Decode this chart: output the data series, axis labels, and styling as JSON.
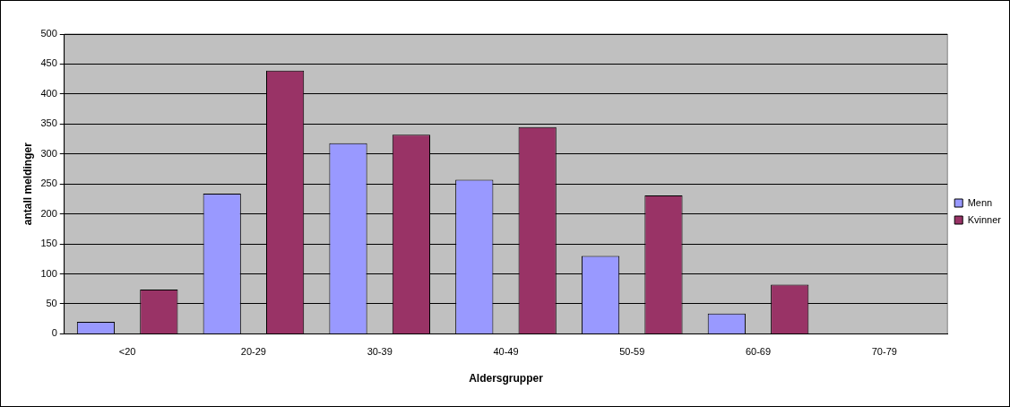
{
  "chart_data": {
    "type": "bar",
    "xlabel": "Aldersgrupper",
    "ylabel": "antall meldinger",
    "categories": [
      "<20",
      "20-29",
      "30-39",
      "40-49",
      "50-59",
      "60-69",
      "70-79"
    ],
    "series": [
      {
        "name": "Menn",
        "color": "#9999ff",
        "values": [
          20,
          234,
          318,
          257,
          130,
          34,
          null
        ]
      },
      {
        "name": "Kvinner",
        "color": "#993366",
        "values": [
          74,
          439,
          332,
          345,
          231,
          82,
          null
        ]
      }
    ],
    "ylim": [
      0,
      500
    ],
    "yticks": [
      0,
      50,
      100,
      150,
      200,
      250,
      300,
      350,
      400,
      450,
      500
    ],
    "grid": "y",
    "legend": "right"
  }
}
